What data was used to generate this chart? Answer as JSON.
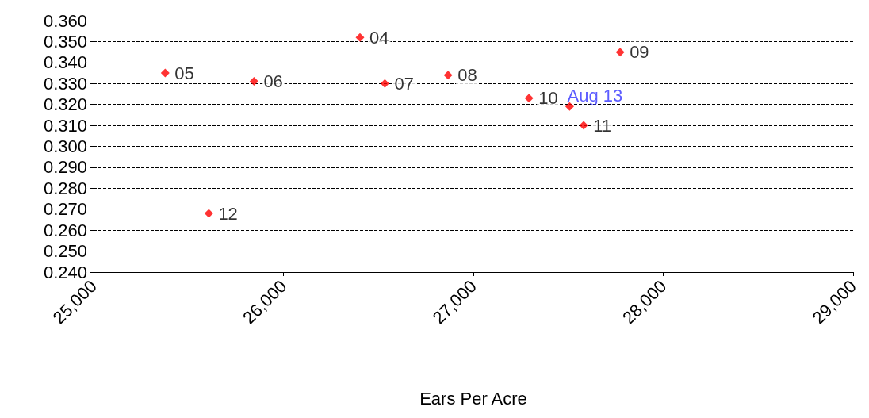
{
  "chart_data": {
    "type": "scatter",
    "xlabel": "Ears Per Acre",
    "series": [
      {
        "color": "#ff0000",
        "x": [
          26403,
          25377,
          25845,
          26534,
          26867,
          27773,
          27293,
          27581,
          25607
        ],
        "values": [
          0.352,
          0.335,
          0.331,
          0.33,
          0.334,
          0.345,
          0.323,
          0.31,
          0.268
        ]
      },
      {
        "name": "Aug 13",
        "color": "#ff0000",
        "x": [
          27507
        ],
        "values": [
          0.319
        ]
      }
    ],
    "annotations": [
      {
        "text": "04",
        "x": 26403,
        "y": 0.352
      },
      {
        "text": "05",
        "x": 25377,
        "y": 0.335
      },
      {
        "text": "06",
        "x": 25845,
        "y": 0.331
      },
      {
        "text": "07",
        "x": 26534,
        "y": 0.33
      },
      {
        "text": "08",
        "x": 26867,
        "y": 0.334
      },
      {
        "text": "09",
        "x": 27773,
        "y": 0.345
      },
      {
        "text": "10",
        "x": 27293,
        "y": 0.323
      },
      {
        "text": "11",
        "x": 27581,
        "y": 0.31
      },
      {
        "text": "12",
        "x": 25607,
        "y": 0.268
      }
    ],
    "xlim": [
      25000,
      29000
    ],
    "xticks": [
      {
        "value": 25000,
        "label": "25,000"
      },
      {
        "value": 26000,
        "label": "26,000"
      },
      {
        "value": 27000,
        "label": "27,000"
      },
      {
        "value": 28000,
        "label": "28,000"
      },
      {
        "value": 29000,
        "label": "29,000"
      }
    ],
    "ylim": [
      0.24,
      0.36
    ],
    "yticks": [
      {
        "value": 0.24,
        "label": "0.240"
      },
      {
        "value": 0.25,
        "label": "0.250"
      },
      {
        "value": 0.26,
        "label": "0.260"
      },
      {
        "value": 0.27,
        "label": "0.270"
      },
      {
        "value": 0.28,
        "label": "0.280"
      },
      {
        "value": 0.29,
        "label": "0.290"
      },
      {
        "value": 0.3,
        "label": "0.300"
      },
      {
        "value": 0.31,
        "label": "0.310"
      },
      {
        "value": 0.32,
        "label": "0.320"
      },
      {
        "value": 0.33,
        "label": "0.330"
      },
      {
        "value": 0.34,
        "label": "0.340"
      },
      {
        "value": 0.35,
        "label": "0.350"
      },
      {
        "value": 0.36,
        "label": "0.360"
      }
    ],
    "grid": "y",
    "marker": "diamond",
    "legend": false
  }
}
